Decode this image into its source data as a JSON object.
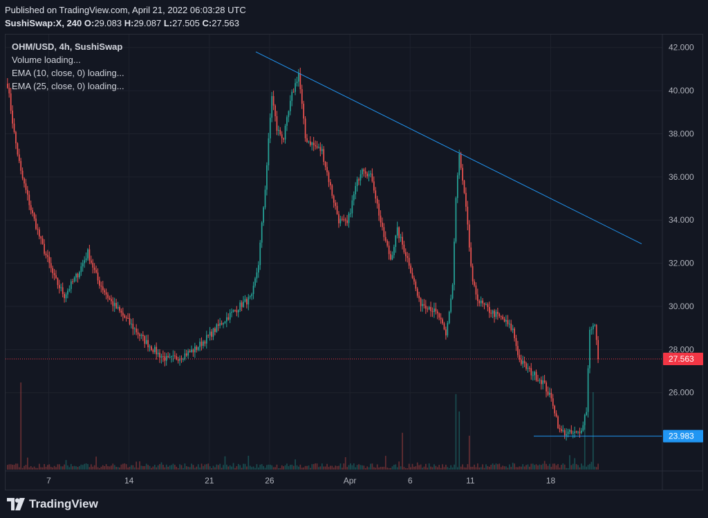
{
  "header": {
    "published": "Published on TradingView.com, April 21, 2022 06:03:28 UTC",
    "symbol": "SushiSwap:X, 240",
    "o_label": "O:",
    "o_value": "29.083",
    "h_label": "H:",
    "h_value": "29.087",
    "l_label": "L:",
    "l_value": "27.505",
    "c_label": "C:",
    "c_value": "27.563"
  },
  "legend": {
    "title": "OHM/USD, 4h, SushiSwap",
    "volume": "Volume loading...",
    "ema10": "EMA (10, close, 0) loading...",
    "ema25": "EMA (25, close, 0) loading..."
  },
  "footer": {
    "brand": "TradingView"
  },
  "chart_data": {
    "type": "candlestick",
    "pair": "OHM/USD",
    "interval": "4h",
    "ylim": [
      22.4,
      42.6
    ],
    "y_ticks": [
      "42.000",
      "40.000",
      "38.000",
      "36.000",
      "34.000",
      "32.000",
      "30.000",
      "28.000",
      "26.000"
    ],
    "x_ticks": [
      "7",
      "14",
      "21",
      "26",
      "Apr",
      "6",
      "11",
      "18"
    ],
    "price_label": {
      "text": "27.563",
      "value": 27.563,
      "color": "#f23645"
    },
    "support_label": {
      "text": "23.983",
      "value": 23.983,
      "color": "#2196f3"
    },
    "trendline": {
      "from_index": 0,
      "from_value": 41.8,
      "to_index": 1,
      "to_value": 32.9
    },
    "up_color": "#26a69a",
    "down_color": "#ef5350",
    "keypoints": [
      [
        0,
        40.3
      ],
      [
        4,
        38.0
      ],
      [
        8,
        36.2
      ],
      [
        14,
        34.5
      ],
      [
        20,
        33.0
      ],
      [
        28,
        31.3
      ],
      [
        34,
        30.5
      ],
      [
        42,
        31.5
      ],
      [
        48,
        32.5
      ],
      [
        54,
        31.2
      ],
      [
        62,
        30.2
      ],
      [
        72,
        29.3
      ],
      [
        82,
        28.4
      ],
      [
        90,
        27.8
      ],
      [
        96,
        27.5
      ],
      [
        104,
        27.7
      ],
      [
        112,
        28.0
      ],
      [
        120,
        28.6
      ],
      [
        130,
        29.4
      ],
      [
        140,
        30.1
      ],
      [
        146,
        30.4
      ],
      [
        150,
        32.0
      ],
      [
        154,
        35.5
      ],
      [
        158,
        39.8
      ],
      [
        161,
        38.2
      ],
      [
        165,
        37.8
      ],
      [
        170,
        39.8
      ],
      [
        174,
        40.8
      ],
      [
        178,
        37.8
      ],
      [
        184,
        37.4
      ],
      [
        188,
        37.2
      ],
      [
        194,
        35.2
      ],
      [
        198,
        34.0
      ],
      [
        203,
        33.8
      ],
      [
        208,
        35.5
      ],
      [
        212,
        36.5
      ],
      [
        218,
        35.9
      ],
      [
        224,
        33.5
      ],
      [
        229,
        32.2
      ],
      [
        233,
        33.5
      ],
      [
        240,
        32.0
      ],
      [
        246,
        30.2
      ],
      [
        252,
        30.0
      ],
      [
        258,
        29.5
      ],
      [
        262,
        28.6
      ],
      [
        266,
        31.0
      ],
      [
        268,
        35.0
      ],
      [
        270,
        37.0
      ],
      [
        274,
        34.5
      ],
      [
        278,
        31.0
      ],
      [
        282,
        30.2
      ],
      [
        288,
        29.8
      ],
      [
        296,
        29.4
      ],
      [
        302,
        28.9
      ],
      [
        306,
        27.5
      ],
      [
        312,
        27.0
      ],
      [
        320,
        26.5
      ],
      [
        326,
        25.5
      ],
      [
        330,
        24.2
      ],
      [
        336,
        24.1
      ],
      [
        342,
        24.1
      ],
      [
        346,
        25.2
      ],
      [
        348,
        29.0
      ],
      [
        351,
        29.1
      ],
      [
        353,
        27.563
      ]
    ],
    "volume_spikes": [
      [
        8,
        0.9
      ],
      [
        236,
        0.38
      ],
      [
        268,
        0.78
      ],
      [
        270,
        0.6
      ],
      [
        276,
        0.35
      ],
      [
        345,
        0.55
      ],
      [
        350,
        0.8
      ]
    ]
  }
}
